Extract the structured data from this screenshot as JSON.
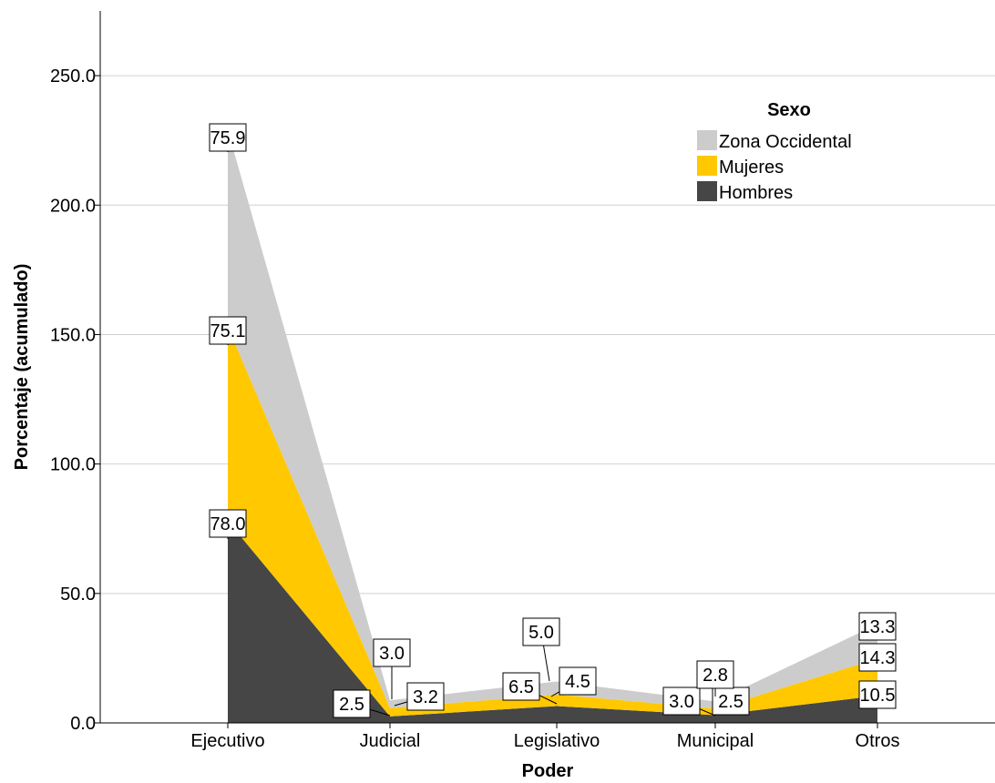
{
  "chart_data": {
    "type": "area",
    "stacked": true,
    "xlabel": "Poder",
    "ylabel": "Porcentaje (acumulado)",
    "categories": [
      "Ejecutivo",
      "Judicial",
      "Legislativo",
      "Municipal",
      "Otros"
    ],
    "ylim": [
      0,
      275
    ],
    "yticks": [
      "0.0",
      "50.0",
      "100.0",
      "150.0",
      "200.0",
      "250.0"
    ],
    "ytick_values": [
      0,
      50,
      100,
      150,
      200,
      250
    ],
    "grid": "horizontal",
    "legend": {
      "title": "Sexo",
      "position": "top-right"
    },
    "series": [
      {
        "name": "Hombres",
        "color": "#464646",
        "values": [
          78.0,
          2.5,
          6.5,
          3.0,
          10.5
        ]
      },
      {
        "name": "Mujeres",
        "color": "#ffc800",
        "values": [
          75.1,
          3.2,
          4.5,
          2.5,
          14.3
        ]
      },
      {
        "name": "Zona Occidental",
        "color": "#cccccc",
        "values": [
          75.9,
          3.0,
          5.0,
          2.8,
          13.3
        ]
      }
    ],
    "data_labels": [
      [
        "78.0",
        "2.5",
        "6.5",
        "3.0",
        "10.5"
      ],
      [
        "75.1",
        "3.2",
        "4.5",
        "2.5",
        "14.3"
      ],
      [
        "75.9",
        "3.0",
        "5.0",
        "2.8",
        "13.3"
      ]
    ]
  }
}
